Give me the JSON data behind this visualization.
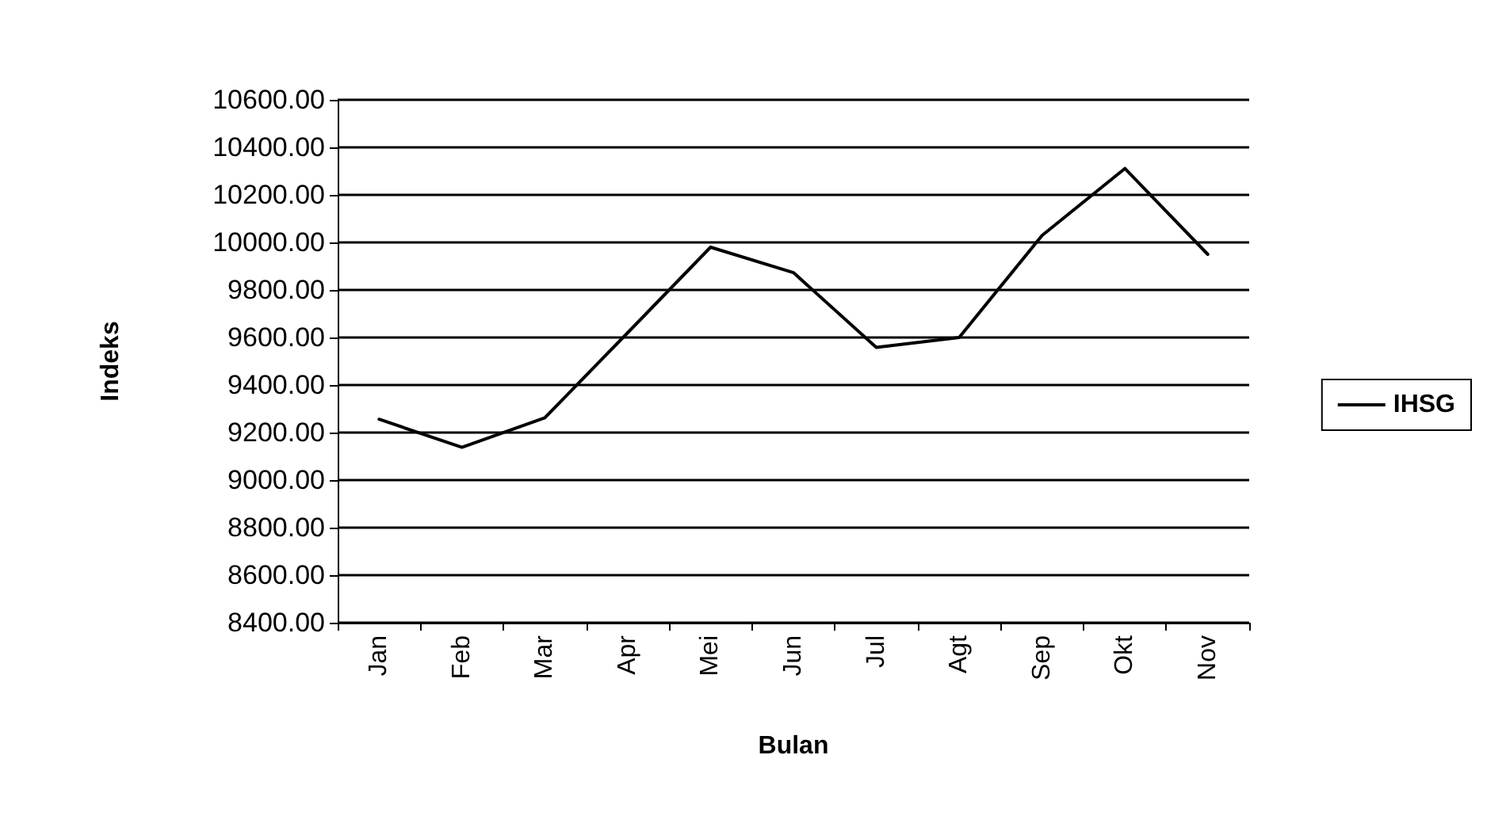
{
  "chart_data": {
    "type": "line",
    "xlabel": "Bulan",
    "ylabel": "Indeks",
    "categories": [
      "Jan",
      "Feb",
      "Mar",
      "Apr",
      "Mei",
      "Jun",
      "Jul",
      "Agt",
      "Sep",
      "Okt",
      "Nov"
    ],
    "series": [
      {
        "name": "IHSG",
        "color": "#000000",
        "values": [
          9256,
          9138,
          9262,
          9620,
          9980,
          9873,
          9558,
          9600,
          10029,
          10311,
          9950
        ]
      }
    ],
    "ylim": [
      8400,
      10600
    ],
    "yticks": [
      {
        "value": 8400,
        "label": "8400.00"
      },
      {
        "value": 8600,
        "label": "8600.00"
      },
      {
        "value": 8800,
        "label": "8800.00"
      },
      {
        "value": 9000,
        "label": "9000.00"
      },
      {
        "value": 9200,
        "label": "9200.00"
      },
      {
        "value": 9400,
        "label": "9400.00"
      },
      {
        "value": 9600,
        "label": "9600.00"
      },
      {
        "value": 9800,
        "label": "9800.00"
      },
      {
        "value": 10000,
        "label": "10000.00"
      },
      {
        "value": 10200,
        "label": "10200.00"
      },
      {
        "value": 10400,
        "label": "10400.00"
      },
      {
        "value": 10600,
        "label": "10600.00"
      }
    ],
    "grid": "y",
    "legend": "right",
    "marker": "none",
    "line_style": "solid"
  }
}
